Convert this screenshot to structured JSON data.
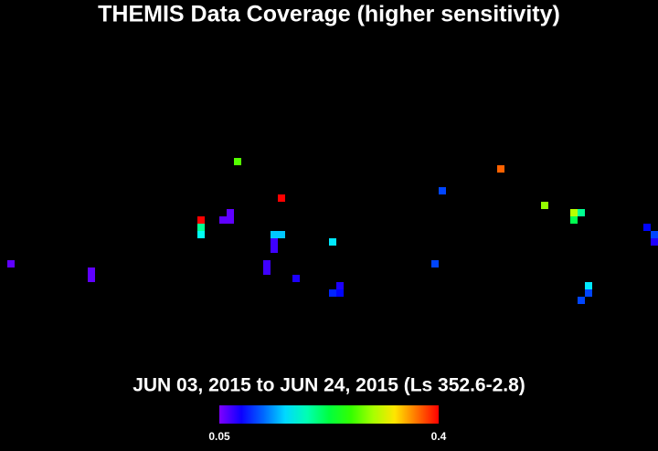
{
  "chart_data": {
    "type": "coverage",
    "title": "THEMIS Data Coverage (higher sensitivity)",
    "subtitle": "JUN 03, 2015 to JUN 24, 2015 (Ls 352.6-2.8)",
    "clim": [
      0.05,
      0.4
    ],
    "cticks": [
      0.05,
      0.4
    ],
    "cells": [
      {
        "col": 1,
        "row": 36,
        "value": 0.06
      },
      {
        "col": 12,
        "row": 37,
        "value": 0.06
      },
      {
        "col": 12,
        "row": 38,
        "value": 0.06
      },
      {
        "col": 27,
        "row": 30,
        "value": 0.4
      },
      {
        "col": 27,
        "row": 31,
        "value": 0.2
      },
      {
        "col": 27,
        "row": 32,
        "value": 0.17
      },
      {
        "col": 31,
        "row": 29,
        "value": 0.06
      },
      {
        "col": 31,
        "row": 30,
        "value": 0.06
      },
      {
        "col": 30,
        "row": 30,
        "value": 0.06
      },
      {
        "col": 32,
        "row": 22,
        "value": 0.27
      },
      {
        "col": 38,
        "row": 27,
        "value": 0.4
      },
      {
        "col": 37,
        "row": 32,
        "value": 0.15
      },
      {
        "col": 38,
        "row": 32,
        "value": 0.15
      },
      {
        "col": 37,
        "row": 33,
        "value": 0.07
      },
      {
        "col": 37,
        "row": 34,
        "value": 0.07
      },
      {
        "col": 36,
        "row": 36,
        "value": 0.07
      },
      {
        "col": 36,
        "row": 37,
        "value": 0.07
      },
      {
        "col": 40,
        "row": 38,
        "value": 0.08
      },
      {
        "col": 45,
        "row": 33,
        "value": 0.16
      },
      {
        "col": 46,
        "row": 39,
        "value": 0.08
      },
      {
        "col": 45,
        "row": 40,
        "value": 0.1
      },
      {
        "col": 46,
        "row": 40,
        "value": 0.09
      },
      {
        "col": 59,
        "row": 36,
        "value": 0.11
      },
      {
        "col": 60,
        "row": 26,
        "value": 0.11
      },
      {
        "col": 68,
        "row": 23,
        "value": 0.37
      },
      {
        "col": 74,
        "row": 28,
        "value": 0.29
      },
      {
        "col": 78,
        "row": 29,
        "value": 0.3
      },
      {
        "col": 79,
        "row": 29,
        "value": 0.2
      },
      {
        "col": 78,
        "row": 30,
        "value": 0.22
      },
      {
        "col": 80,
        "row": 39,
        "value": 0.16
      },
      {
        "col": 80,
        "row": 40,
        "value": 0.11
      },
      {
        "col": 79,
        "row": 41,
        "value": 0.11
      },
      {
        "col": 88,
        "row": 31,
        "value": 0.09
      },
      {
        "col": 89,
        "row": 32,
        "value": 0.11
      },
      {
        "col": 89,
        "row": 33,
        "value": 0.08
      }
    ]
  }
}
